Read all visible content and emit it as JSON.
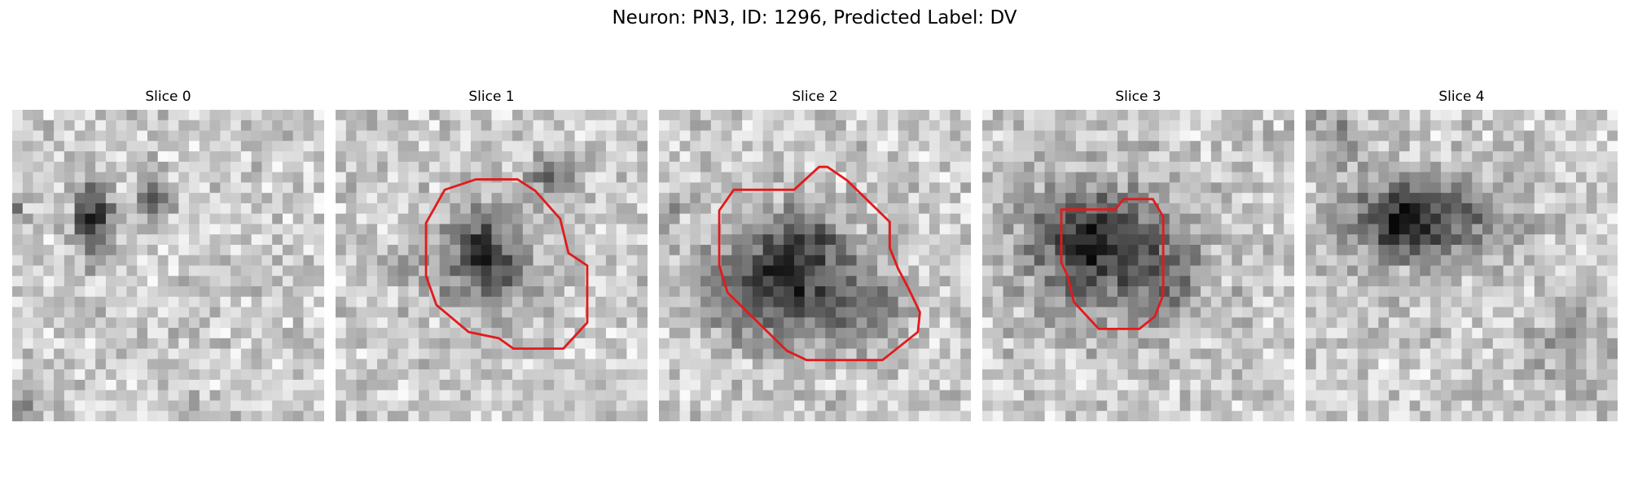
{
  "figure": {
    "title": "Neuron: PN3, ID: 1296, Predicted Label: DV"
  },
  "colors": {
    "background": "#ffffff",
    "contour": "#e31a1c",
    "colormap": "grayscale"
  },
  "slices": [
    {
      "title": "Slice 0",
      "has_contour": false
    },
    {
      "title": "Slice 1",
      "has_contour": true
    },
    {
      "title": "Slice 2",
      "has_contour": true
    },
    {
      "title": "Slice 3",
      "has_contour": true
    },
    {
      "title": "Slice 4",
      "has_contour": false
    }
  ]
}
